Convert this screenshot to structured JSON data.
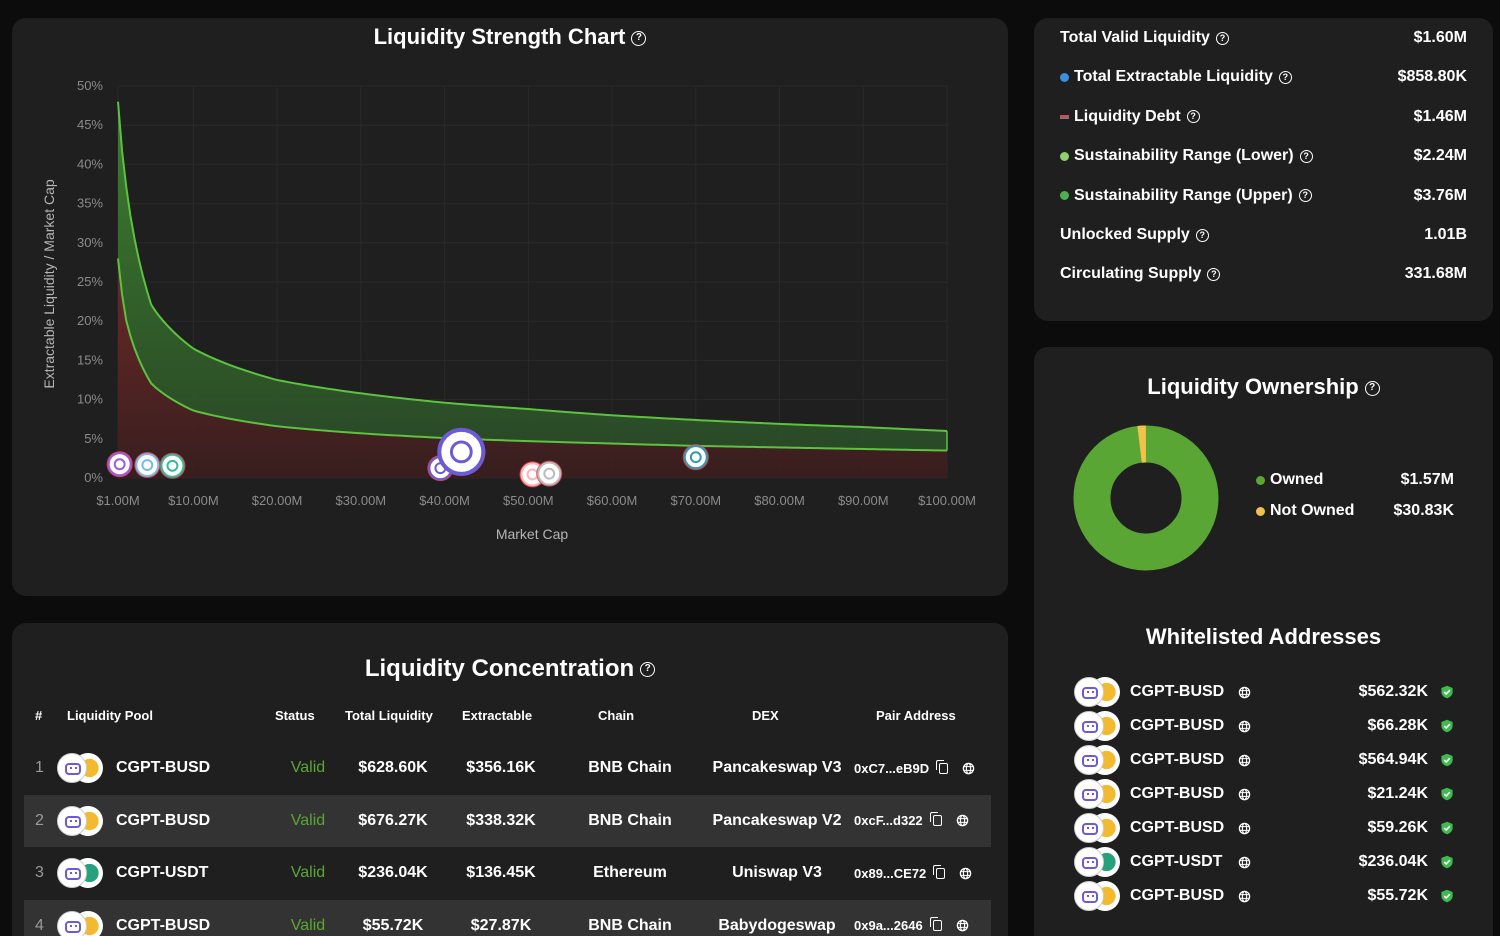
{
  "chart": {
    "title": "Liquidity Strength Chart",
    "xlabel": "Market Cap",
    "ylabel": "Extractable Liquidity / Market Cap"
  },
  "chart_data": {
    "type": "area",
    "title": "Liquidity Strength Chart",
    "xlabel": "Market Cap",
    "ylabel": "Extractable Liquidity / Market Cap",
    "x_ticks": [
      "$1.00M",
      "$10.00M",
      "$20.00M",
      "$30.00M",
      "$40.00M",
      "$50.00M",
      "$60.00M",
      "$70.00M",
      "$80.00M",
      "$90.00M",
      "$100.00M"
    ],
    "y_ticks": [
      "0%",
      "5%",
      "10%",
      "15%",
      "20%",
      "25%",
      "30%",
      "35%",
      "40%",
      "45%",
      "50%"
    ],
    "xlim": [
      1,
      100
    ],
    "ylim": [
      0,
      50
    ],
    "series": [
      {
        "x": [
          1,
          2,
          5,
          10,
          20,
          30,
          40,
          50,
          60,
          70,
          80,
          90,
          100
        ],
        "y": [
          48,
          37,
          22,
          16.5,
          12.5,
          10.8,
          9.6,
          8.8,
          8.0,
          7.4,
          6.9,
          6.5,
          6.0
        ]
      },
      {
        "x": [
          1,
          2,
          5,
          10,
          20,
          30,
          40,
          50,
          60,
          70,
          80,
          90,
          100
        ],
        "y": [
          28,
          20,
          12,
          8.6,
          6.6,
          5.7,
          5.1,
          4.7,
          4.4,
          4.1,
          3.9,
          3.7,
          3.5
        ]
      }
    ],
    "pools": [
      {
        "x": 1.2,
        "y": 1.5
      },
      {
        "x": 4.5,
        "y": 1.4
      },
      {
        "x": 7.5,
        "y": 1.3
      },
      {
        "x": 39.5,
        "y": 1.0
      },
      {
        "x": 42.0,
        "y": 1.8
      },
      {
        "x": 50.5,
        "y": 0.2
      },
      {
        "x": 52.5,
        "y": 0.3
      },
      {
        "x": 70.0,
        "y": 2.4
      }
    ]
  },
  "stats": [
    {
      "label": "Total Valid Liquidity",
      "value": "$1.60M",
      "marker": "none"
    },
    {
      "label": "Total Extractable Liquidity",
      "value": "$858.80K",
      "marker": "dot",
      "color": "#3b8fe0"
    },
    {
      "label": "Liquidity Debt",
      "value": "$1.46M",
      "marker": "dash",
      "color": "#e04444"
    },
    {
      "label": "Sustainability Range (Lower)",
      "value": "$2.24M",
      "marker": "dot",
      "color": "#8fd16a"
    },
    {
      "label": "Sustainability Range (Upper)",
      "value": "$3.76M",
      "marker": "dot",
      "color": "#4caf50"
    },
    {
      "label": "Unlocked Supply",
      "value": "1.01B",
      "marker": "none"
    },
    {
      "label": "Circulating Supply",
      "value": "331.68M",
      "marker": "none"
    }
  ],
  "ownership": {
    "title": "Liquidity Ownership",
    "owned_color": "#5aa634",
    "not_owned_color": "#f0c14b",
    "owned_fraction": 0.981,
    "legend": [
      {
        "label": "Owned",
        "value": "$1.57M",
        "color": "#5aa634"
      },
      {
        "label": "Not Owned",
        "value": "$30.83K",
        "color": "#f0c14b"
      }
    ]
  },
  "whitelist": {
    "title": "Whitelisted Addresses",
    "items": [
      {
        "pair": "CGPT-BUSD",
        "amount": "$562.32K",
        "quote": "busd"
      },
      {
        "pair": "CGPT-BUSD",
        "amount": "$66.28K",
        "quote": "busd"
      },
      {
        "pair": "CGPT-BUSD",
        "amount": "$564.94K",
        "quote": "busd"
      },
      {
        "pair": "CGPT-BUSD",
        "amount": "$21.24K",
        "quote": "busd"
      },
      {
        "pair": "CGPT-BUSD",
        "amount": "$59.26K",
        "quote": "busd"
      },
      {
        "pair": "CGPT-USDT",
        "amount": "$236.04K",
        "quote": "usdt"
      },
      {
        "pair": "CGPT-BUSD",
        "amount": "$55.72K",
        "quote": "busd"
      }
    ]
  },
  "concentration": {
    "title": "Liquidity Concentration",
    "headers": {
      "num": "#",
      "pool": "Liquidity Pool",
      "status": "Status",
      "total": "Total Liquidity",
      "extractable": "Extractable",
      "chain": "Chain",
      "dex": "DEX",
      "pair": "Pair Address"
    },
    "rows": [
      {
        "num": "1",
        "pool": "CGPT-BUSD",
        "quote": "busd",
        "status": "Valid",
        "total": "$628.60K",
        "extractable": "$356.16K",
        "chain": "BNB Chain",
        "dex": "Pancakeswap V3",
        "pair": "0xC7...eB9D"
      },
      {
        "num": "2",
        "pool": "CGPT-BUSD",
        "quote": "busd",
        "status": "Valid",
        "total": "$676.27K",
        "extractable": "$338.32K",
        "chain": "BNB Chain",
        "dex": "Pancakeswap V2",
        "pair": "0xcF...d322"
      },
      {
        "num": "3",
        "pool": "CGPT-USDT",
        "quote": "usdt",
        "status": "Valid",
        "total": "$236.04K",
        "extractable": "$136.45K",
        "chain": "Ethereum",
        "dex": "Uniswap V3",
        "pair": "0x89...CE72"
      },
      {
        "num": "4",
        "pool": "CGPT-BUSD",
        "quote": "busd",
        "status": "Valid",
        "total": "$55.72K",
        "extractable": "$27.87K",
        "chain": "BNB Chain",
        "dex": "Babydogeswap",
        "pair": "0x9a...2646"
      }
    ]
  },
  "icons": {
    "help": "help-circle-icon",
    "globe": "globe-icon",
    "copy": "copy-icon",
    "check": "verified-check-icon"
  }
}
